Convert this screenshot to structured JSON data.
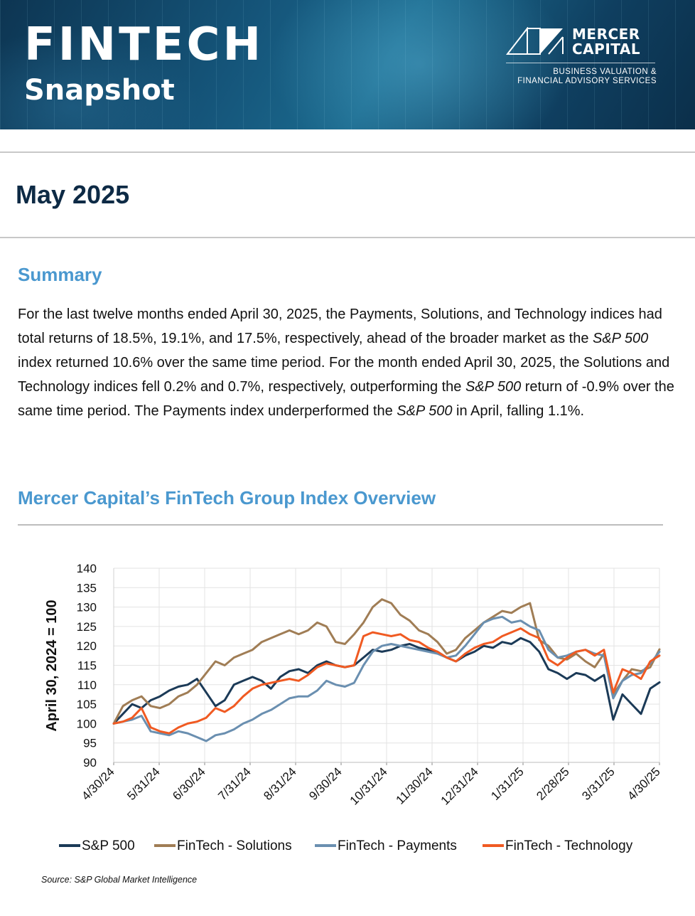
{
  "header": {
    "title": "FINTECH",
    "subtitle": "Snapshot",
    "logo": {
      "name_line1": "MERCER",
      "name_line2": "CAPITAL",
      "tagline_line1": "BUSINESS VALUATION &",
      "tagline_line2": "FINANCIAL ADVISORY SERVICES"
    }
  },
  "date_heading": "May 2025",
  "summary": {
    "heading": "Summary",
    "parts": [
      "For the last twelve months ended April 30, 2025, the Payments, Solutions, and Technology indices had total returns of 18.5%, 19.1%, and 17.5%, respectively, ahead of the broader market as the ",
      "S&P 500",
      " index returned 10.6% over the same time period. For the month ended April 30, 2025, the Solutions and Technology indices fell 0.2% and 0.7%, respectively, outperforming the ",
      "S&P 500",
      " return of -0.9% over the same time period. The Payments index underperformed the ",
      "S&P 500",
      " in April, falling 1.1%."
    ]
  },
  "chart_section": {
    "heading": "Mercer Capital’s FinTech Group Index Overview"
  },
  "chart_data": {
    "type": "line",
    "ylabel": "April 30, 2024 = 100",
    "xlabel": "",
    "ylim": [
      90,
      140
    ],
    "yticks": [
      90,
      95,
      100,
      105,
      110,
      115,
      120,
      125,
      130,
      135,
      140
    ],
    "xticks": [
      "4/30/24",
      "5/31/24",
      "6/30/24",
      "7/31/24",
      "8/31/24",
      "9/30/24",
      "10/31/24",
      "11/30/24",
      "12/31/24",
      "1/31/25",
      "2/28/25",
      "3/31/25",
      "4/30/25"
    ],
    "grid": true,
    "legend_position": "bottom",
    "series": [
      {
        "name": "S&P 500",
        "color": "#1b3a57",
        "values": [
          100,
          102.5,
          105,
          104,
          106,
          107,
          108.5,
          109.5,
          110,
          111.5,
          108,
          104.5,
          106,
          110,
          111,
          112,
          111,
          109,
          112,
          113.5,
          114,
          113,
          115,
          116,
          115,
          114.5,
          115,
          117,
          119,
          118.5,
          119,
          120,
          120.5,
          119.5,
          119,
          118.5,
          117,
          116,
          117.5,
          118.5,
          120,
          119.5,
          121,
          120.5,
          122,
          121,
          118.5,
          114,
          113,
          111.5,
          113,
          112.5,
          111,
          112.5,
          101,
          107.5,
          105,
          102.5,
          109,
          110.6
        ]
      },
      {
        "name": "FinTech - Solutions",
        "color": "#a07d55",
        "values": [
          100,
          104.5,
          106,
          107,
          104.5,
          104,
          105,
          107,
          108,
          110,
          113,
          116,
          115,
          117,
          118,
          119,
          121,
          122,
          123,
          124,
          123,
          124,
          126,
          125,
          121,
          120.5,
          123,
          126,
          130,
          132,
          131,
          128,
          126.5,
          124,
          123,
          121,
          118,
          119,
          122,
          124,
          126,
          127.5,
          129,
          128.5,
          130,
          131,
          121.5,
          120,
          117,
          116.5,
          118,
          116,
          114.5,
          118,
          107.5,
          111,
          114,
          113.5,
          114.5,
          119.1
        ]
      },
      {
        "name": "FinTech - Payments",
        "color": "#6a8fb0",
        "values": [
          100,
          100.5,
          101,
          102,
          98,
          97.5,
          97,
          98,
          97.5,
          96.5,
          95.5,
          97,
          97.5,
          98.5,
          100,
          101,
          102.5,
          103.5,
          105,
          106.5,
          107,
          107,
          108.5,
          111,
          110,
          109.5,
          110.5,
          115,
          118.5,
          120,
          120.5,
          120,
          119.5,
          119,
          118.5,
          118,
          117,
          117.5,
          120,
          123,
          126,
          127,
          127.5,
          126,
          126.5,
          125,
          124,
          119,
          117,
          117.5,
          118.5,
          119,
          118,
          117.5,
          106.5,
          111,
          112.5,
          113,
          115.5,
          118.5
        ]
      },
      {
        "name": "FinTech - Technology",
        "color": "#f05a22",
        "values": [
          100,
          100.5,
          101.5,
          104,
          99,
          98,
          97.5,
          99,
          100,
          100.5,
          101.5,
          104,
          103,
          104.5,
          107,
          109,
          110,
          110.5,
          111,
          111.5,
          111,
          112.5,
          114.5,
          115.5,
          115,
          114.5,
          115,
          122.5,
          123.5,
          123,
          122.5,
          123,
          121.5,
          121,
          119.5,
          118.5,
          117,
          116,
          118,
          119.5,
          120.5,
          121,
          122.5,
          123.5,
          124.5,
          123,
          122,
          116.5,
          115,
          117,
          118.5,
          119,
          117.5,
          119,
          108,
          114,
          113,
          111.5,
          116,
          117.5
        ]
      }
    ]
  },
  "source": "Source: S&P Global Market Intelligence"
}
